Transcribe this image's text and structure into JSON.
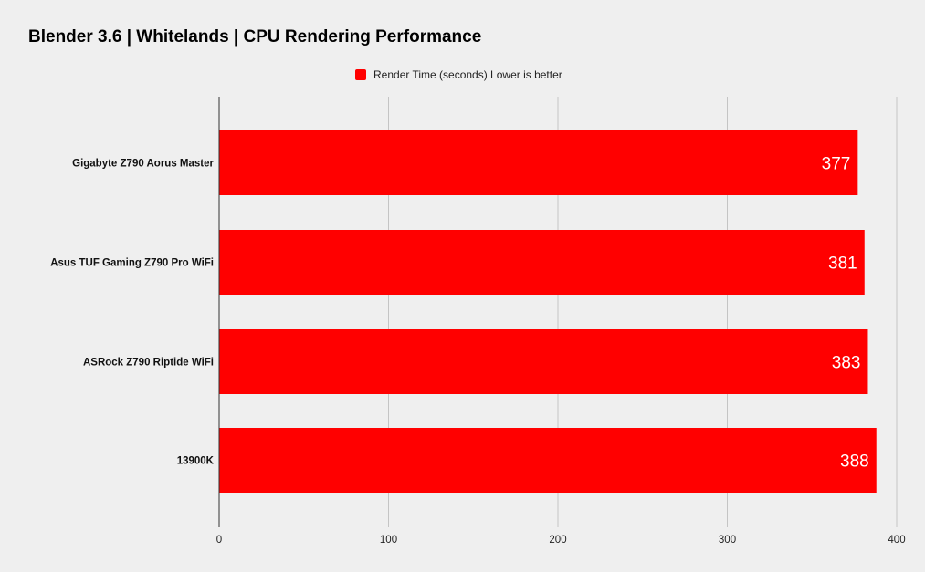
{
  "chart_data": {
    "type": "bar",
    "orientation": "horizontal",
    "title": "Blender 3.6 | Whitelands | CPU Rendering Performance",
    "categories": [
      "Gigabyte Z790 Aorus Master",
      "Asus TUF Gaming Z790 Pro WiFi",
      "ASRock Z790 Riptide WiFi",
      "13900K"
    ],
    "series": [
      {
        "name": "Render Time (seconds) Lower is better",
        "values": [
          377,
          381,
          383,
          388
        ],
        "color": "#ff0000"
      }
    ],
    "xlim": [
      0,
      400
    ],
    "xticks": [
      0,
      100,
      200,
      300,
      400
    ],
    "xlabel": "",
    "ylabel": "",
    "grid": true,
    "legend_position": "top-center",
    "data_labels": true
  },
  "colors": {
    "background": "#efefef",
    "bar": "#ff0000",
    "grid": "#c4c4c4",
    "axis": "#333333"
  }
}
